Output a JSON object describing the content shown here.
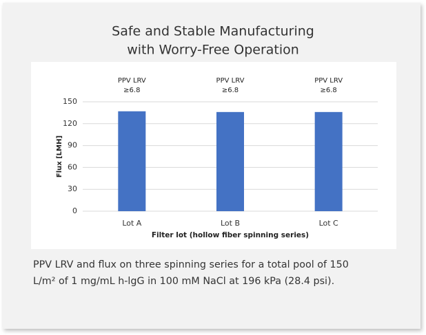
{
  "chart_data": {
    "type": "bar",
    "title": [
      "Safe and Stable Manufacturing",
      "with Worry-Free Operation"
    ],
    "categories": [
      "Lot A",
      "Lot B",
      "Lot C"
    ],
    "values": [
      137,
      136,
      136
    ],
    "color": "#4472c4",
    "annotations": [
      [
        "PPV LRV",
        "≥6.8"
      ],
      [
        "PPV LRV",
        "≥6.8"
      ],
      [
        "PPV LRV",
        "≥6.8"
      ]
    ],
    "y_label": "Flux [LMH]",
    "x_label": "Filter lot (hollow fiber spinning series)",
    "ylim": [
      0,
      150
    ],
    "yticks": [
      0,
      30,
      60,
      90,
      120,
      150
    ],
    "grid": true,
    "caption": [
      "PPV LRV and flux on three spinning series for a total pool of 150",
      "L/m² of 1 mg/mL h-lgG in 100 mM NaCl at 196 kPa (28.4 psi)."
    ]
  }
}
